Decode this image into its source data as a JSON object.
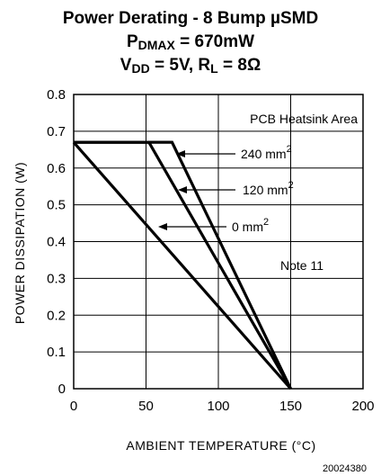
{
  "chart_data": {
    "type": "line",
    "title": {
      "line1": "Power Derating - 8 Bump µSMD",
      "line2_prefix": "P",
      "line2_sub": "DMAX",
      "line2_suffix": " = 670mW",
      "line3_v": "V",
      "line3_vsub": "DD",
      "line3_mid": " = 5V, R",
      "line3_rsub": "L",
      "line3_end": " = 8Ω"
    },
    "xlabel": "AMBIENT TEMPERATURE (°C)",
    "ylabel": "POWER DISSIPATION (W)",
    "xlim": [
      0,
      200
    ],
    "ylim": [
      0,
      0.8
    ],
    "xticks": [
      0,
      50,
      100,
      150,
      200
    ],
    "yticks": [
      0,
      0.1,
      0.2,
      0.3,
      0.4,
      0.5,
      0.6,
      0.7,
      0.8
    ],
    "xtick_labels": [
      "0",
      "50",
      "100",
      "150",
      "200"
    ],
    "ytick_labels": [
      "0",
      "0.1",
      "0.2",
      "0.3",
      "0.4",
      "0.5",
      "0.6",
      "0.7",
      "0.8"
    ],
    "grid": true,
    "series": [
      {
        "name": "240 mm",
        "name_sup": "2",
        "x": [
          0,
          68,
          150
        ],
        "y": [
          0.67,
          0.67,
          0
        ]
      },
      {
        "name": "120 mm",
        "name_sup": "2",
        "x": [
          0,
          52,
          150
        ],
        "y": [
          0.67,
          0.67,
          0
        ]
      },
      {
        "name": "0 mm",
        "name_sup": "2",
        "x": [
          0,
          150
        ],
        "y": [
          0.67,
          0
        ]
      }
    ],
    "annotations": {
      "heatsink_area": "PCB Heatsink Area",
      "note": "Note 11"
    },
    "figure_code": "20024380"
  }
}
